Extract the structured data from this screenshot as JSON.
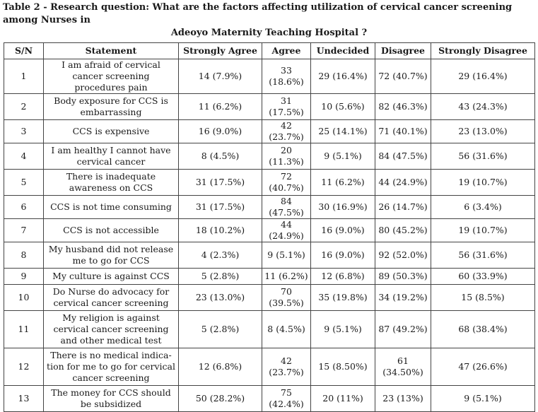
{
  "caption": {
    "line1": "Table 2 - Research question: What are the factors affecting utilization of cervical cancer screening among Nurses in",
    "line2": "Adeoyo Maternity Teaching Hospital ?"
  },
  "table": {
    "headers": [
      "S/N",
      "Statement",
      "Strongly Agree",
      "Agree",
      "Undecided",
      "Disagree",
      "Strongly Disagree"
    ],
    "rows": [
      [
        "1",
        "I am afraid of cervical cancer screening procedures pain",
        "14 (7.9%)",
        "33 (18.6%)",
        "29 (16.4%)",
        "72 (40.7%)",
        "29 (16.4%)"
      ],
      [
        "2",
        "Body exposure for CCS is embarrassing",
        "11 (6.2%)",
        "31 (17.5%)",
        "10 (5.6%)",
        "82 (46.3%)",
        "43 (24.3%)"
      ],
      [
        "3",
        "CCS is expensive",
        "16 (9.0%)",
        "42 (23.7%)",
        "25 (14.1%)",
        "71 (40.1%)",
        "23 (13.0%)"
      ],
      [
        "4",
        "I am healthy I cannot have cervical cancer",
        "8 (4.5%)",
        "20 (11.3%)",
        "9 (5.1%)",
        "84 (47.5%)",
        "56 (31.6%)"
      ],
      [
        "5",
        "There is inadequate awareness on CCS",
        "31 (17.5%)",
        "72 (40.7%)",
        "11 (6.2%)",
        "44 (24.9%)",
        "19 (10.7%)"
      ],
      [
        "6",
        "CCS is not time consuming",
        "31 (17.5%)",
        "84 (47.5%)",
        "30 (16.9%)",
        "26 (14.7%)",
        "6 (3.4%)"
      ],
      [
        "7",
        "CCS is not accessible",
        "18 (10.2%)",
        "44 (24.9%)",
        "16 (9.0%)",
        "80 (45.2%)",
        "19 (10.7%)"
      ],
      [
        "8",
        "My husband did not release me to go for CCS",
        "4 (2.3%)",
        "9 (5.1%)",
        "16 (9.0%)",
        "92 (52.0%)",
        "56 (31.6%)"
      ],
      [
        "9",
        "My culture is against CCS",
        "5 (2.8%)",
        "11 (6.2%)",
        "12 (6.8%)",
        "89 (50.3%)",
        "60 (33.9%)"
      ],
      [
        "10",
        "Do Nurse do advocacy for cervical cancer screening",
        "23 (13.0%)",
        "70 (39.5%)",
        "35 (19.8%)",
        "34 (19.2%)",
        "15 (8.5%)"
      ],
      [
        "11",
        "My religion is against cervical cancer screening and other medical test",
        "5 (2.8%)",
        "8 (4.5%)",
        "9 (5.1%)",
        "87 (49.2%)",
        "68 (38.4%)"
      ],
      [
        "12",
        "There is no medical indica-tion for me to go for cervical cancer screening",
        "12 (6.8%)",
        "42 (23.7%)",
        "15 (8.50%)",
        "61 (34.50%)",
        "47 (26.6%)"
      ],
      [
        "13",
        "The money for CCS should be subsidized",
        "50 (28.2%)",
        "75 (42.4%)",
        "20 (11%)",
        "23 (13%)",
        "9 (5.1%)"
      ]
    ]
  }
}
